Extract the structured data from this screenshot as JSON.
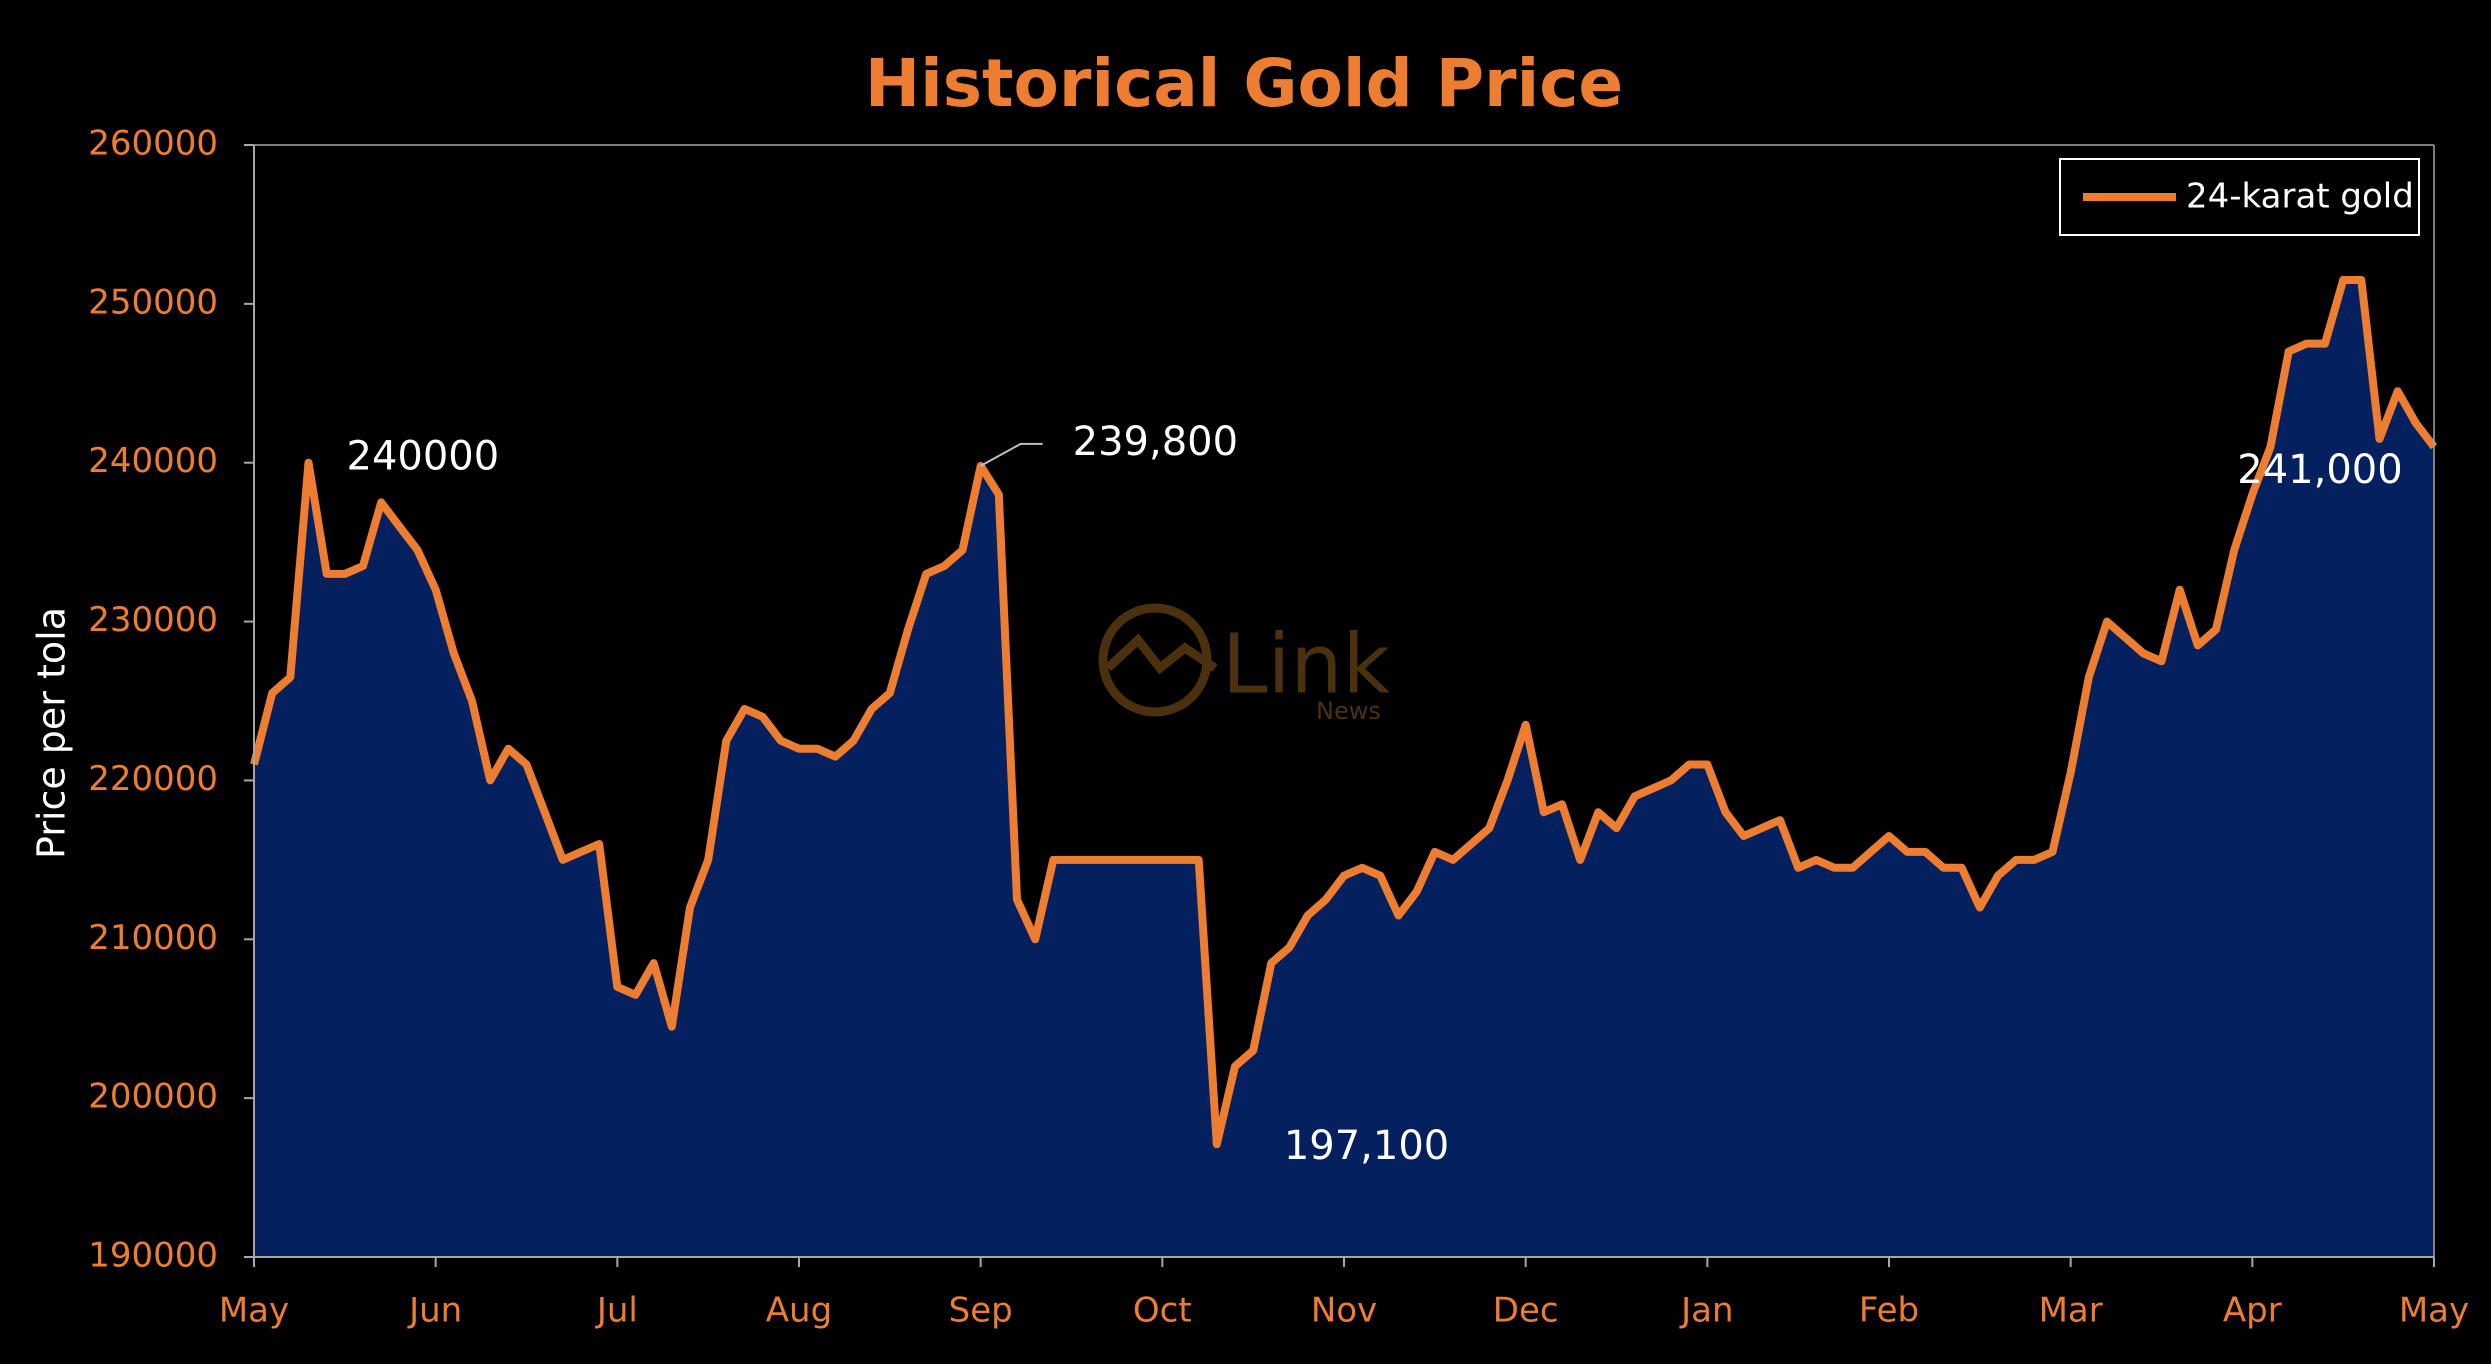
{
  "chart_data": {
    "type": "area",
    "title": "Historical Gold Price",
    "y_label": "Price per tola",
    "watermark": {
      "text": "Link",
      "subtext": "News"
    },
    "legend": "upper right",
    "categories": [
      "May",
      null,
      null,
      null,
      null,
      null,
      null,
      null,
      null,
      null,
      "Jun",
      null,
      null,
      null,
      null,
      null,
      null,
      null,
      null,
      null,
      "Jul",
      null,
      null,
      null,
      null,
      null,
      null,
      null,
      null,
      null,
      "Aug",
      null,
      null,
      null,
      null,
      null,
      null,
      null,
      null,
      null,
      "Sep",
      null,
      null,
      null,
      null,
      null,
      null,
      null,
      null,
      null,
      "Oct",
      null,
      null,
      null,
      null,
      null,
      null,
      null,
      null,
      null,
      "Nov",
      null,
      null,
      null,
      null,
      null,
      null,
      null,
      null,
      null,
      "Dec",
      null,
      null,
      null,
      null,
      null,
      null,
      null,
      null,
      null,
      "Jan",
      null,
      null,
      null,
      null,
      null,
      null,
      null,
      null,
      null,
      "Feb",
      null,
      null,
      null,
      null,
      null,
      null,
      null,
      null,
      null,
      "Mar",
      null,
      null,
      null,
      null,
      null,
      null,
      null,
      null,
      null,
      "Apr",
      null,
      null,
      null,
      null,
      null,
      null,
      null,
      null,
      null,
      "May"
    ],
    "series": [
      {
        "name": "24-karat gold",
        "color": "#ed7d31",
        "fill": "#05205e",
        "values": [
          221000,
          225500,
          226500,
          240000,
          233000,
          233000,
          233500,
          237500,
          236000,
          234500,
          232000,
          228000,
          225000,
          220000,
          222000,
          221000,
          218000,
          215000,
          215500,
          216000,
          207000,
          206500,
          208500,
          204500,
          212000,
          215000,
          222500,
          224500,
          224000,
          222500,
          222000,
          222000,
          221500,
          222500,
          224500,
          225500,
          229500,
          233000,
          233500,
          234500,
          239800,
          238000,
          212500,
          210000,
          215000,
          215000,
          215000,
          215000,
          215000,
          215000,
          215000,
          215000,
          215000,
          197100,
          202000,
          203000,
          208500,
          209500,
          211500,
          212500,
          214000,
          214500,
          214000,
          211500,
          213000,
          215500,
          215000,
          216000,
          217000,
          220000,
          223500,
          218000,
          218500,
          215000,
          218000,
          217000,
          219000,
          219500,
          220000,
          221000,
          221000,
          218000,
          216500,
          217000,
          217500,
          214500,
          215000,
          214500,
          214500,
          215500,
          216500,
          215500,
          215500,
          214500,
          214500,
          212000,
          214000,
          215000,
          215000,
          215500,
          220500,
          226500,
          230000,
          229000,
          228000,
          227500,
          232000,
          228500,
          229500,
          234500,
          238000,
          241000,
          247000,
          247500,
          247500,
          251500,
          251500,
          241500,
          244500,
          242500,
          241000
        ],
        "value_labels": [
          null,
          null,
          null,
          "240000",
          null,
          null,
          null,
          null,
          null,
          null,
          null,
          null,
          null,
          null,
          null,
          null,
          null,
          null,
          null,
          null,
          null,
          null,
          null,
          null,
          null,
          null,
          null,
          null,
          null,
          null,
          null,
          null,
          null,
          null,
          null,
          null,
          null,
          null,
          null,
          null,
          "239,800",
          null,
          null,
          null,
          null,
          null,
          null,
          null,
          null,
          null,
          null,
          null,
          null,
          "197,100",
          null,
          null,
          null,
          null,
          null,
          null,
          null,
          null,
          null,
          null,
          null,
          null,
          null,
          null,
          null,
          null,
          null,
          null,
          null,
          null,
          null,
          null,
          null,
          null,
          null,
          null,
          null,
          null,
          null,
          null,
          null,
          null,
          null,
          null,
          null,
          null,
          null,
          null,
          null,
          null,
          null,
          null,
          null,
          null,
          null,
          null,
          null,
          null,
          null,
          null,
          null,
          null,
          null,
          null,
          null,
          null,
          null,
          null,
          null,
          null,
          null,
          null,
          null,
          null,
          null,
          null,
          "241,000"
        ]
      }
    ],
    "ylim": [
      190000,
      260000
    ],
    "yticks": [
      190000,
      200000,
      210000,
      220000,
      230000,
      240000,
      250000,
      260000
    ]
  }
}
